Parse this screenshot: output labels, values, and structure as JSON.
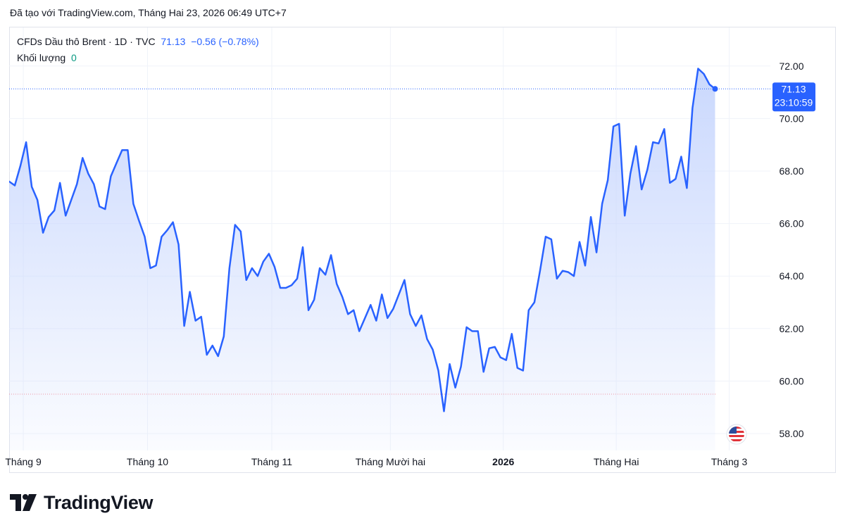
{
  "header": {
    "created_with": "Đã tạo với TradingView.com, Tháng Hai 23, 2026 06:49 UTC+7"
  },
  "legend": {
    "symbol": "CFDs Dầu thô Brent · 1D · TVC",
    "last": "71.13",
    "change": "−0.56 (−0.78%)",
    "volume_label": "Khối lượng",
    "volume_value": "0"
  },
  "price_badge": {
    "price": "71.13",
    "countdown": "23:10:59"
  },
  "brand": {
    "name": "TradingView"
  },
  "colors": {
    "line": "#2962ff",
    "area_top": "#c7d6fd",
    "grid": "#f0f3fa",
    "axis_text": "#131722"
  },
  "chart_data": {
    "type": "area",
    "title": "CFDs Dầu thô Brent · 1D · TVC",
    "xlabel": "",
    "ylabel": "",
    "ylim": [
      57.3,
      73.2
    ],
    "y_ticks": [
      58,
      60,
      62,
      64,
      66,
      68,
      70,
      72
    ],
    "y_tick_labels": [
      "58.00",
      "60.00",
      "62.00",
      "64.00",
      "66.00",
      "68.00",
      "70.00",
      "72.00"
    ],
    "x_tick_labels": [
      "Tháng 9",
      "Tháng 10",
      "Tháng 11",
      "Tháng Mười hai",
      "2026",
      "Tháng Hai",
      "Tháng 3"
    ],
    "x_tick_index": [
      2.5,
      24.5,
      46.5,
      67.5,
      87.5,
      107.5,
      127.5
    ],
    "x_tick_bold": [
      false,
      false,
      false,
      false,
      true,
      false,
      false
    ],
    "reference_line": 59.5,
    "last_value": 71.13,
    "grid": true,
    "legend_position": "top-left",
    "series": [
      {
        "values": [
          67.6,
          67.45,
          68.2,
          69.1,
          67.4,
          66.9,
          65.65,
          66.25,
          66.5,
          67.55,
          66.3,
          66.9,
          67.5,
          68.5,
          67.9,
          67.5,
          66.65,
          66.55,
          67.8,
          68.3,
          68.8,
          68.8,
          66.75,
          66.1,
          65.5,
          64.3,
          64.4,
          65.5,
          65.75,
          66.05,
          65.2,
          62.1,
          63.4,
          62.3,
          62.45,
          61.0,
          61.35,
          60.95,
          61.7,
          64.3,
          65.95,
          65.7,
          63.85,
          64.3,
          64.0,
          64.55,
          64.85,
          64.35,
          63.55,
          63.55,
          63.65,
          63.9,
          65.1,
          62.7,
          63.1,
          64.3,
          64.05,
          64.8,
          63.7,
          63.2,
          62.55,
          62.7,
          61.9,
          62.4,
          62.9,
          62.3,
          63.3,
          62.4,
          62.75,
          63.3,
          63.85,
          62.55,
          62.1,
          62.5,
          61.6,
          61.2,
          60.4,
          58.85,
          60.65,
          59.75,
          60.55,
          62.05,
          61.9,
          61.9,
          60.35,
          61.25,
          61.3,
          60.9,
          60.8,
          61.8,
          60.5,
          60.4,
          62.7,
          63.0,
          64.2,
          65.5,
          65.4,
          63.9,
          64.2,
          64.15,
          64.0,
          65.3,
          64.4,
          66.25,
          64.9,
          66.75,
          67.65,
          69.7,
          69.8,
          66.3,
          67.9,
          68.95,
          67.3,
          68.05,
          69.1,
          69.05,
          69.6,
          67.55,
          67.7,
          68.55,
          67.35,
          70.4,
          71.9,
          71.7,
          71.3,
          71.13
        ]
      }
    ]
  }
}
